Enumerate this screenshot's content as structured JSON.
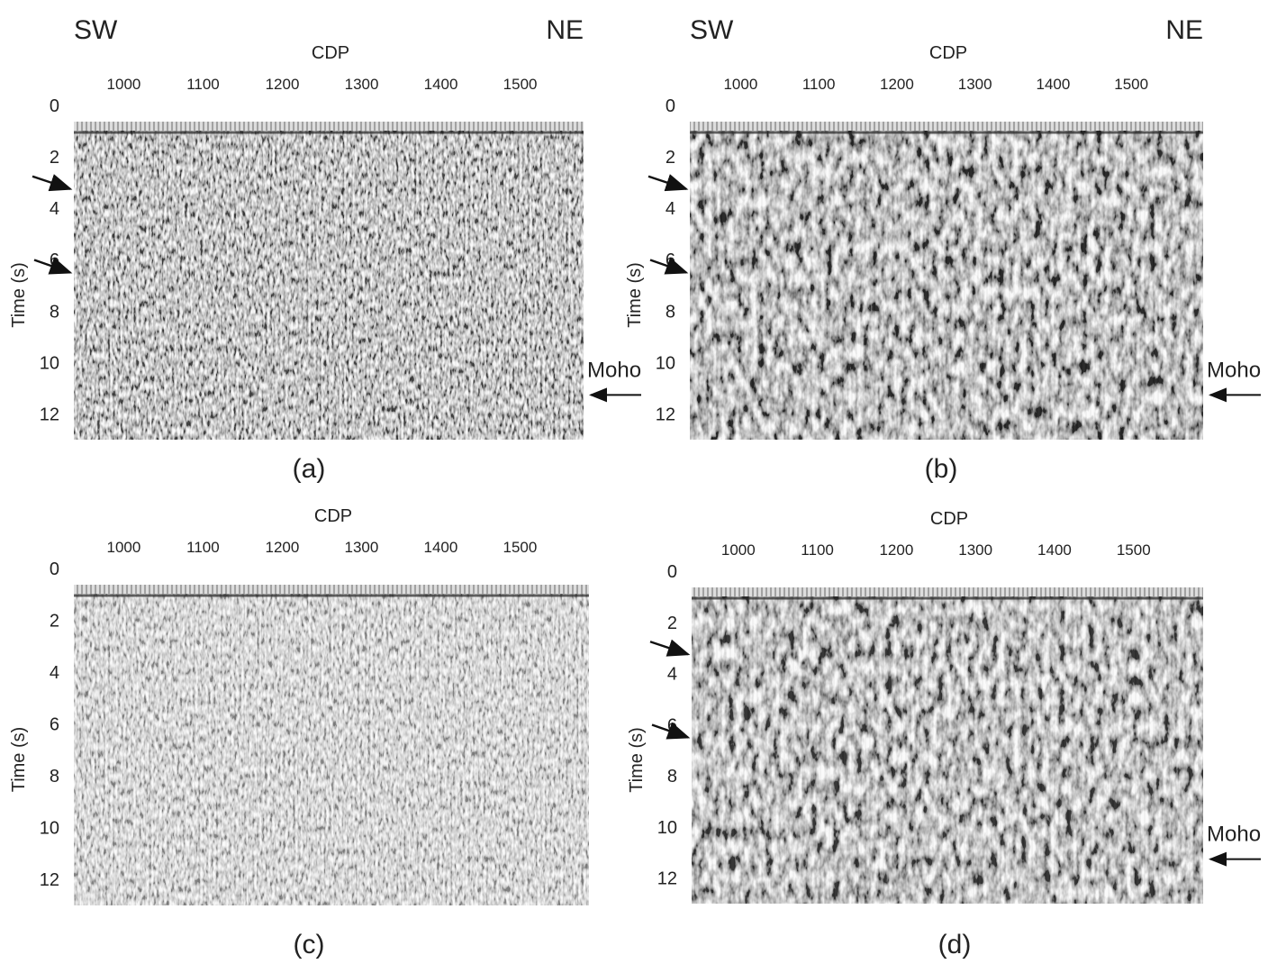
{
  "panels": [
    {
      "label": "(a)",
      "left_label": "SW",
      "right_label": "NE",
      "x_axis_title": "CDP",
      "y_axis_title": "Time (s)",
      "xlim": [
        937,
        1580
      ],
      "xticks": [
        1000,
        1100,
        1200,
        1300,
        1400,
        1500
      ],
      "ylim": [
        0,
        13
      ],
      "yticks": [
        0,
        2,
        4,
        6,
        8,
        10,
        12
      ],
      "annotation": "Moho"
    },
    {
      "label": "(b)",
      "left_label": "SW",
      "right_label": "NE",
      "x_axis_title": "CDP",
      "y_axis_title": "Time (s)",
      "xlim": [
        935,
        1592
      ],
      "xticks": [
        1000,
        1100,
        1200,
        1300,
        1400,
        1500
      ],
      "ylim": [
        0,
        13
      ],
      "yticks": [
        0,
        2,
        4,
        6,
        8,
        10,
        12
      ],
      "annotation": "Moho"
    },
    {
      "label": "(c)",
      "x_axis_title": "CDP",
      "y_axis_title": "Time (s)",
      "xlim": [
        937,
        1587
      ],
      "xticks": [
        1000,
        1100,
        1200,
        1300,
        1400,
        1500
      ],
      "ylim": [
        0,
        13
      ],
      "yticks": [
        0,
        2,
        4,
        6,
        8,
        10,
        12
      ]
    },
    {
      "label": "(d)",
      "x_axis_title": "CDP",
      "y_axis_title": "Time (s)",
      "xlim": [
        941,
        1588
      ],
      "xticks": [
        1000,
        1100,
        1200,
        1300,
        1400,
        1500
      ],
      "ylim": [
        0,
        13
      ],
      "yticks": [
        0,
        2,
        4,
        6,
        8,
        10,
        12
      ],
      "annotation": "Moho"
    }
  ]
}
